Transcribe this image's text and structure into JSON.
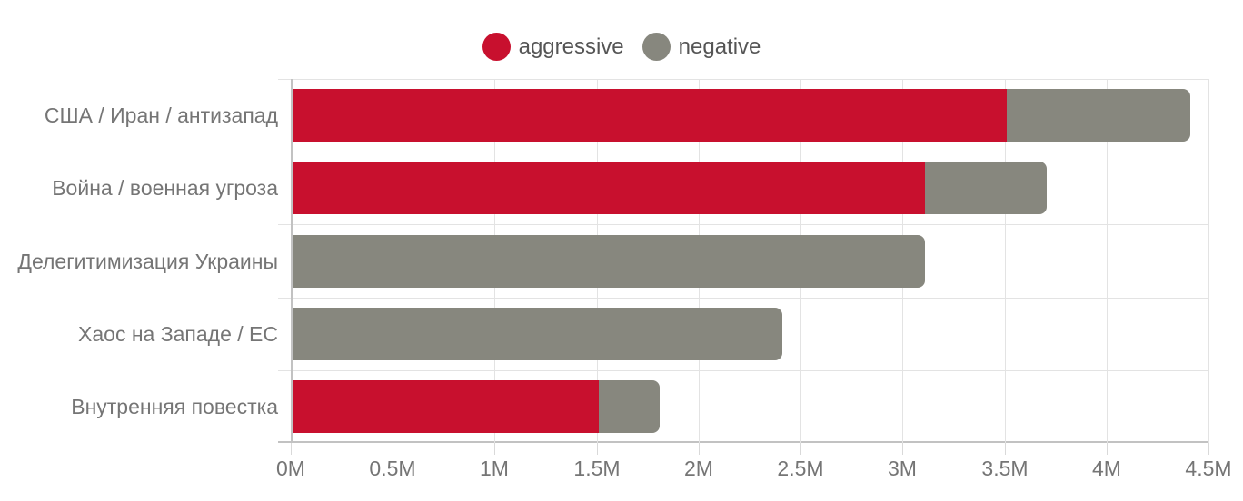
{
  "legend": {
    "items": [
      {
        "label": "aggressive",
        "color": "#C8102E"
      },
      {
        "label": "negative",
        "color": "#87877E"
      }
    ]
  },
  "chart_data": {
    "type": "bar",
    "orientation": "horizontal",
    "stacked": true,
    "title": "",
    "xlabel": "",
    "ylabel": "",
    "unit": "M (millions)",
    "xlim": [
      0,
      4.5
    ],
    "x_ticks": [
      {
        "value": 0,
        "label": "0M"
      },
      {
        "value": 0.5,
        "label": "0.5M"
      },
      {
        "value": 1,
        "label": "1M"
      },
      {
        "value": 1.5,
        "label": "1.5M"
      },
      {
        "value": 2,
        "label": "2M"
      },
      {
        "value": 2.5,
        "label": "2.5M"
      },
      {
        "value": 3,
        "label": "3M"
      },
      {
        "value": 3.5,
        "label": "3.5M"
      },
      {
        "value": 4,
        "label": "4M"
      },
      {
        "value": 4.5,
        "label": "4.5M"
      }
    ],
    "categories": [
      "США / Иран / антизапад",
      "Война / военная угроза",
      "Делегитимизация Украины",
      "Хаос на Западе / ЕС",
      "Внутренняя повестка"
    ],
    "series": [
      {
        "name": "aggressive",
        "color": "#C8102E",
        "values": [
          3.5,
          3.1,
          0,
          0,
          1.5
        ]
      },
      {
        "name": "negative",
        "color": "#87877E",
        "values": [
          0.9,
          0.6,
          3.1,
          2.4,
          0.3
        ]
      }
    ],
    "totals": [
      4.4,
      3.7,
      3.1,
      2.4,
      1.8
    ],
    "grid": true,
    "legend_position": "top"
  },
  "colors": {
    "gridline": "#e3e3e3",
    "axis_line": "#c2c2c2",
    "tick_mark": "#d9d9d9",
    "label_text": "#757575",
    "legend_text": "#555555",
    "background": "#ffffff"
  }
}
